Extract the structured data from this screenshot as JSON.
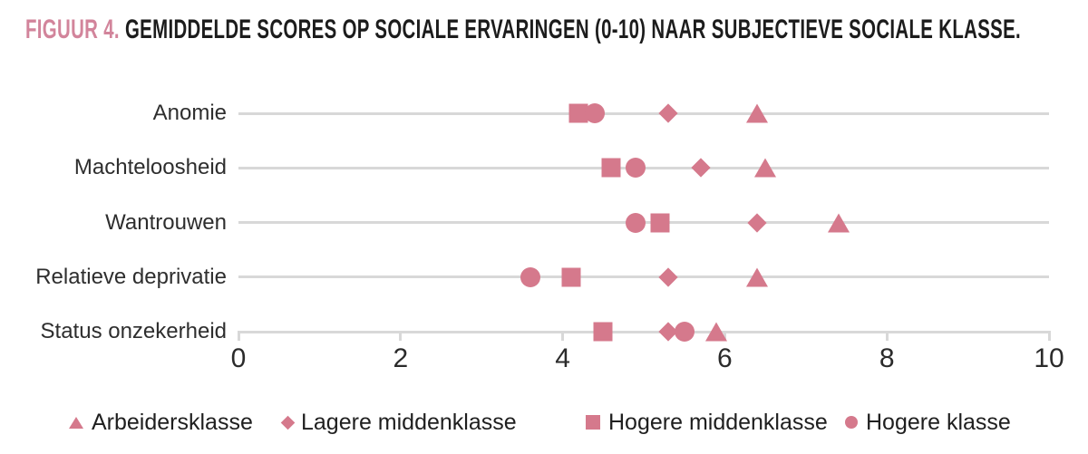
{
  "figure": {
    "label": "FIGUUR 4.",
    "title": "GEMIDDELDE SCORES OP SOCIALE ERVARINGEN (0-10) NAAR SUBJECTIEVE SOCIALE KLASSE."
  },
  "chart_data": {
    "type": "scatter",
    "variant": "horizontal-dot-plot",
    "title": "FIGUUR 4. GEMIDDELDE SCORES OP SOCIALE ERVARINGEN (0-10) NAAR SUBJECTIEVE SOCIALE KLASSE.",
    "categories": [
      "Anomie",
      "Machteloosheid",
      "Wantrouwen",
      "Relatieve deprivatie",
      "Status onzekerheid"
    ],
    "series": [
      {
        "name": "Arbeidersklasse",
        "marker": "triangle",
        "values": [
          6.4,
          6.5,
          7.4,
          6.4,
          5.9
        ]
      },
      {
        "name": "Lagere middenklasse",
        "marker": "diamond",
        "values": [
          5.3,
          5.7,
          6.4,
          5.3,
          5.3
        ]
      },
      {
        "name": "Hogere middenklasse",
        "marker": "square",
        "values": [
          4.2,
          4.6,
          5.2,
          4.1,
          4.5
        ]
      },
      {
        "name": "Hogere klasse",
        "marker": "circle",
        "values": [
          4.4,
          4.9,
          4.9,
          3.6,
          5.5
        ]
      }
    ],
    "xlim": [
      0,
      10
    ],
    "x_ticks": [
      0,
      2,
      4,
      6,
      8,
      10
    ],
    "xlabel": "",
    "ylabel": "",
    "grid": "off",
    "legend_position": "bottom",
    "colors": {
      "marker": "#d5798c",
      "title_accent": "#d2849b",
      "line": "#d8d8d8",
      "text": "#2e2e2e"
    }
  }
}
